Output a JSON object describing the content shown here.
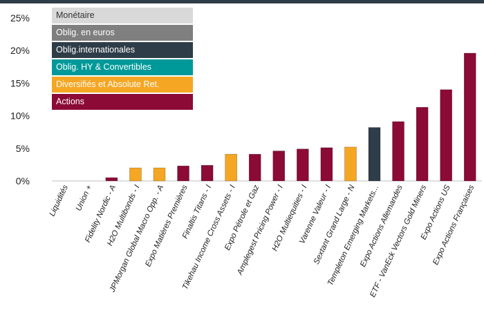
{
  "chart_data": {
    "type": "bar",
    "title": "",
    "xlabel": "",
    "ylabel": "",
    "ylim": [
      0,
      25
    ],
    "yticks": [
      "0%",
      "5%",
      "10%",
      "15%",
      "20%",
      "25%"
    ],
    "grid": false,
    "legend_position": "top-left",
    "legend": [
      {
        "label": "Monétaire",
        "color": "#d9d9d9"
      },
      {
        "label": "Oblig. en euros",
        "color": "#7f7f7f"
      },
      {
        "label": "Oblig.internationales",
        "color": "#2f3d48"
      },
      {
        "label": "Oblig. HY & Convertibles",
        "color": "#009999"
      },
      {
        "label": "Diversifiés et Absolute Ret.",
        "color": "#f5a623"
      },
      {
        "label": "Actions",
        "color": "#8b0a36"
      }
    ],
    "categories": [
      "Liquidités",
      "Union +",
      "Fidelity Nordic - A",
      "H2O Multibonds - I",
      "JPMorgan Global Macro Opp. - A",
      "Expo Matières Premières",
      "Finaltis Titans - I",
      "Tikehau Income Cross Assets - I",
      "Expo Pétrole et Gaz",
      "Amplegest Pricing Power - I",
      "H2O Multiequities - I",
      "Varenne Valeur - I",
      "Sextant Grand Large - N",
      "Templeton Emerging Markets...",
      "Expo Actions Allemandes",
      "ETF - VanEck Vectors Gold Miners",
      "Expo Actions US",
      "Expo Actions Françaises"
    ],
    "values": [
      0,
      0,
      0.5,
      2.0,
      2.0,
      2.3,
      2.4,
      4.1,
      4.1,
      4.6,
      4.9,
      5.1,
      5.2,
      8.2,
      9.1,
      11.3,
      14.0,
      19.6
    ],
    "bar_categories": [
      "Actions",
      "Actions",
      "Actions",
      "Diversifiés et Absolute Ret.",
      "Diversifiés et Absolute Ret.",
      "Actions",
      "Actions",
      "Diversifiés et Absolute Ret.",
      "Actions",
      "Actions",
      "Actions",
      "Actions",
      "Diversifiés et Absolute Ret.",
      "Oblig.internationales",
      "Actions",
      "Actions",
      "Actions",
      "Actions"
    ]
  }
}
